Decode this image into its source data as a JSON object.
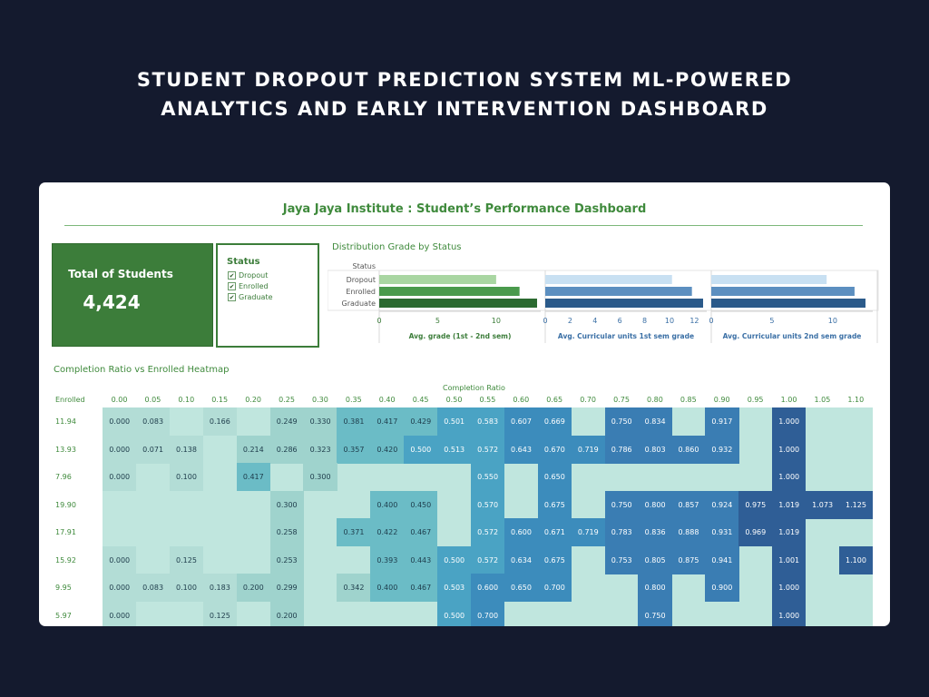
{
  "headline": {
    "line1": "STUDENT DROPOUT PREDICTION SYSTEM ML-POWERED",
    "line2": "ANALYTICS AND EARLY INTERVENTION DASHBOARD"
  },
  "dashboard": {
    "title": "Jaya Jaya Institute : Student’s Performance Dashboard",
    "kpi": {
      "label": "Total of Students",
      "value": "4,424"
    },
    "legend": {
      "title": "Status",
      "items": [
        {
          "label": "Dropout",
          "checked": true
        },
        {
          "label": "Enrolled",
          "checked": true
        },
        {
          "label": "Graduate",
          "checked": true
        }
      ]
    }
  },
  "colors": {
    "brand_green": "#3c7d3a",
    "dropout_green": "#a9d6a2",
    "enrolled_green": "#4a9a4c",
    "graduate_green": "#2b6a30",
    "dropout_blue": "#c8e0f2",
    "enrolled_blue": "#5c8fc0",
    "graduate_blue": "#2b5a8a"
  },
  "chart_data": [
    {
      "type": "bar",
      "title": "Distribution Grade by Status",
      "row_header": "Status",
      "categories": [
        "Dropout",
        "Enrolled",
        "Graduate"
      ],
      "panels": [
        {
          "xlabel": "Avg. grade (1st - 2nd sem)",
          "values": [
            10,
            12,
            13.5
          ],
          "xlim": [
            0,
            13.5
          ],
          "ticks": [
            "0",
            "5",
            "10"
          ]
        },
        {
          "xlabel": "Avg. Curricular units 1st sem grade",
          "values": [
            10.2,
            11.8,
            12.7
          ],
          "xlim": [
            0,
            12.7
          ],
          "ticks": [
            "0",
            "2",
            "4",
            "6",
            "8",
            "10",
            "12"
          ]
        },
        {
          "xlabel": "Avg. Curricular units 2nd sem grade",
          "values": [
            9.5,
            11.8,
            12.7
          ],
          "xlim": [
            0,
            13
          ],
          "ticks": [
            "0",
            "5",
            "10"
          ]
        }
      ]
    },
    {
      "type": "heatmap",
      "title": "Completion Ratio vs Enrolled Heatmap",
      "xlabel": "Completion Ratio",
      "ylabel": "Enrolled",
      "x": [
        "0.00",
        "0.05",
        "0.10",
        "0.15",
        "0.20",
        "0.25",
        "0.30",
        "0.35",
        "0.40",
        "0.45",
        "0.50",
        "0.55",
        "0.60",
        "0.65",
        "0.70",
        "0.75",
        "0.80",
        "0.85",
        "0.90",
        "0.95",
        "1.00",
        "1.05",
        "1.10"
      ],
      "y": [
        "11.94",
        "13.93",
        "7.96",
        "19.90",
        "17.91",
        "15.92",
        "9.95",
        "5.97"
      ],
      "cells": [
        [
          "0.000",
          "0.083",
          "",
          "0.166",
          "",
          "0.249",
          "0.330",
          "0.381",
          "0.417",
          "0.429",
          "0.501",
          "0.583",
          "0.607",
          "0.669",
          "",
          "0.750",
          "0.834",
          "",
          "0.917",
          "",
          "1.000",
          "",
          ""
        ],
        [
          "0.000",
          "0.071",
          "0.138",
          "",
          "0.214",
          "0.286",
          "0.323",
          "0.357",
          "0.420",
          "0.500",
          "0.513",
          "0.572",
          "0.643",
          "0.670",
          "0.719",
          "0.786",
          "0.803",
          "0.860",
          "0.932",
          "",
          "1.000",
          "",
          ""
        ],
        [
          "0.000",
          "",
          "0.100",
          "",
          "0.417",
          "",
          "0.300",
          "",
          "",
          "",
          "",
          "0.550",
          "",
          "0.650",
          "",
          "",
          "",
          "",
          "",
          "",
          "1.000",
          "",
          ""
        ],
        [
          "",
          "",
          "",
          "",
          "",
          "0.300",
          "",
          "",
          "0.400",
          "0.450",
          "",
          "0.570",
          "",
          "0.675",
          "",
          "0.750",
          "0.800",
          "0.857",
          "0.924",
          "0.975",
          "1.019",
          "1.073",
          "1.125"
        ],
        [
          "",
          "",
          "",
          "",
          "",
          "0.258",
          "",
          "0.371",
          "0.422",
          "0.467",
          "",
          "0.572",
          "0.600",
          "0.671",
          "0.719",
          "0.783",
          "0.836",
          "0.888",
          "0.931",
          "0.969",
          "1.019",
          "",
          ""
        ],
        [
          "0.000",
          "",
          "0.125",
          "",
          "",
          "0.253",
          "",
          "",
          "0.393",
          "0.443",
          "0.500",
          "0.572",
          "0.634",
          "0.675",
          "",
          "0.753",
          "0.805",
          "0.875",
          "0.941",
          "",
          "1.001",
          "",
          "1.100"
        ],
        [
          "0.000",
          "0.083",
          "0.100",
          "0.183",
          "0.200",
          "0.299",
          "",
          "0.342",
          "0.400",
          "0.467",
          "0.503",
          "0.600",
          "0.650",
          "0.700",
          "",
          "",
          "0.800",
          "",
          "0.900",
          "",
          "1.000",
          "",
          ""
        ],
        [
          "0.000",
          "",
          "",
          "0.125",
          "",
          "0.200",
          "",
          "",
          "",
          "",
          "0.500",
          "0.700",
          "",
          "",
          "",
          "",
          "0.750",
          "",
          "",
          "",
          "1.000",
          "",
          ""
        ]
      ]
    }
  ]
}
